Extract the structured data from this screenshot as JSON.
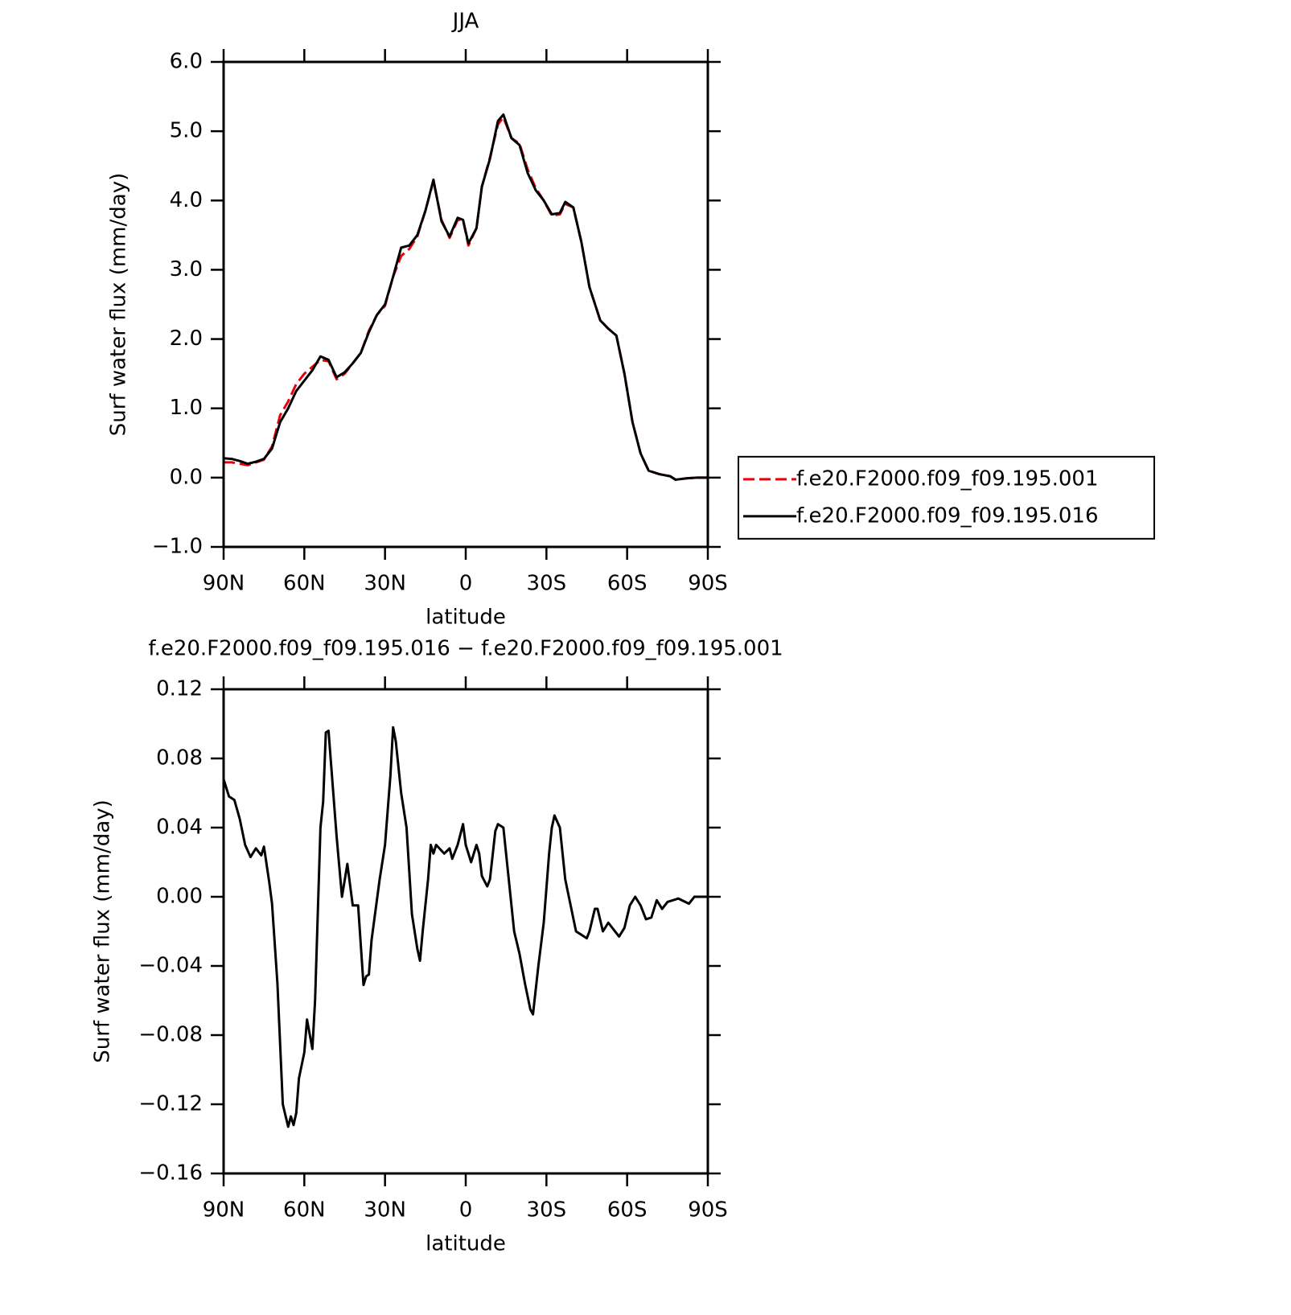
{
  "chart_data": [
    {
      "type": "line",
      "title": "JJA",
      "x_label": "latitude",
      "y_label": "Surf water flux (mm/day)",
      "x": [
        90,
        87,
        84,
        81,
        78,
        75,
        72,
        69,
        66,
        63,
        60,
        57,
        54,
        51,
        48,
        45,
        42,
        39,
        36,
        33,
        30,
        27,
        24,
        21,
        18,
        15,
        12,
        9,
        6,
        3,
        1,
        -1,
        -4,
        -6,
        -9,
        -12,
        -14,
        -17,
        -20,
        -23,
        -26,
        -29,
        -32,
        -35,
        -37,
        -40,
        -43,
        -46,
        -50,
        -53,
        -56,
        -59,
        -62,
        -65,
        -68,
        -72,
        -76,
        -78,
        -82,
        -86,
        -90
      ],
      "series": [
        {
          "name": "f.e20.F2000.f09_f09.195.001",
          "color": "#e8000b",
          "dash": true,
          "values": [
            0.22,
            0.22,
            0.2,
            0.18,
            0.22,
            0.26,
            0.45,
            0.9,
            1.1,
            1.35,
            1.5,
            1.6,
            1.7,
            1.68,
            1.42,
            1.5,
            1.65,
            1.8,
            2.12,
            2.35,
            2.48,
            2.9,
            3.2,
            3.3,
            3.48,
            3.85,
            4.28,
            3.72,
            3.46,
            3.72,
            3.72,
            3.35,
            3.6,
            4.2,
            4.62,
            5.1,
            5.2,
            4.9,
            4.82,
            4.45,
            4.18,
            4.0,
            3.78,
            3.8,
            3.95,
            3.9,
            3.4,
            2.75,
            2.27,
            2.15,
            2.05,
            1.5,
            0.8,
            0.35,
            0.1,
            0.05,
            0.02,
            -0.03,
            -0.01,
            0.0,
            0.0
          ]
        },
        {
          "name": "f.e20.F2000.f09_f09.195.016",
          "color": "#000000",
          "dash": false,
          "values": [
            0.28,
            0.27,
            0.24,
            0.2,
            0.23,
            0.27,
            0.42,
            0.8,
            1.0,
            1.25,
            1.4,
            1.55,
            1.75,
            1.7,
            1.45,
            1.52,
            1.65,
            1.8,
            2.1,
            2.35,
            2.5,
            2.9,
            3.32,
            3.35,
            3.5,
            3.85,
            4.3,
            3.7,
            3.48,
            3.75,
            3.72,
            3.38,
            3.6,
            4.2,
            4.6,
            5.15,
            5.24,
            4.9,
            4.8,
            4.4,
            4.15,
            4.0,
            3.8,
            3.82,
            3.98,
            3.9,
            3.4,
            2.75,
            2.27,
            2.15,
            2.05,
            1.5,
            0.8,
            0.35,
            0.1,
            0.05,
            0.02,
            -0.03,
            -0.01,
            0.0,
            0.0
          ]
        }
      ],
      "xlim": [
        90,
        -90
      ],
      "xticks": [
        {
          "value": 90,
          "label": "90N"
        },
        {
          "value": 60,
          "label": "60N"
        },
        {
          "value": 30,
          "label": "30N"
        },
        0,
        {
          "value": -30,
          "label": "30S"
        },
        {
          "value": -60,
          "label": "60S"
        },
        {
          "value": -90,
          "label": "90S"
        }
      ],
      "ylim": [
        -1,
        6
      ],
      "yticks": [
        {
          "value": -1,
          "label": "−1.0"
        },
        {
          "value": 0,
          "label": "0.0"
        },
        {
          "value": 1,
          "label": "1.0"
        },
        {
          "value": 2,
          "label": "2.0"
        },
        {
          "value": 3,
          "label": "3.0"
        },
        {
          "value": 4,
          "label": "4.0"
        },
        {
          "value": 5,
          "label": "5.0"
        },
        {
          "value": 6,
          "label": "6.0"
        }
      ],
      "legend": "right"
    },
    {
      "type": "line",
      "title": "f.e20.F2000.f09_f09.195.016 − f.e20.F2000.f09_f09.195.001",
      "x_label": "latitude",
      "y_label": "Surf water flux (mm/day)",
      "x": [
        90,
        88,
        86,
        84,
        82,
        80,
        78,
        76,
        75,
        73,
        72,
        70,
        68,
        66,
        65,
        64,
        63,
        62,
        60,
        59,
        57,
        56,
        54,
        53,
        52,
        51,
        48,
        46,
        44,
        42,
        40,
        38,
        37,
        36,
        35,
        32,
        30,
        28,
        27,
        26,
        24,
        22,
        20,
        18,
        17,
        16,
        14,
        13,
        12,
        11,
        8,
        6,
        5,
        3,
        1,
        0,
        -2,
        -4,
        -5,
        -6,
        -8,
        -9,
        -11,
        -12,
        -14,
        -16,
        -18,
        -20,
        -22,
        -24,
        -25,
        -27,
        -29,
        -31,
        -32,
        -33,
        -35,
        -37,
        -39,
        -41,
        -43,
        -45,
        -46,
        -48,
        -49,
        -51,
        -53,
        -55,
        -57,
        -59,
        -61,
        -63,
        -65,
        -67,
        -69,
        -71,
        -73,
        -75,
        -79,
        -83,
        -85,
        -88,
        -90
      ],
      "series": [
        {
          "color": "#000000",
          "values": [
            0.068,
            0.058,
            0.056,
            0.045,
            0.03,
            0.023,
            0.028,
            0.024,
            0.029,
            0.008,
            -0.004,
            -0.05,
            -0.12,
            -0.133,
            -0.127,
            -0.132,
            -0.125,
            -0.105,
            -0.09,
            -0.071,
            -0.088,
            -0.06,
            0.04,
            0.055,
            0.095,
            0.096,
            0.035,
            0.0,
            0.019,
            -0.005,
            -0.005,
            -0.051,
            -0.046,
            -0.045,
            -0.025,
            0.01,
            0.03,
            0.07,
            0.098,
            0.09,
            0.06,
            0.04,
            -0.01,
            -0.03,
            -0.037,
            -0.02,
            0.01,
            0.03,
            0.025,
            0.03,
            0.025,
            0.028,
            0.022,
            0.03,
            0.042,
            0.03,
            0.02,
            0.03,
            0.025,
            0.012,
            0.006,
            0.01,
            0.038,
            0.042,
            0.04,
            0.01,
            -0.02,
            -0.033,
            -0.05,
            -0.065,
            -0.068,
            -0.04,
            -0.015,
            0.025,
            0.04,
            0.047,
            0.04,
            0.01,
            -0.005,
            -0.02,
            -0.022,
            -0.024,
            -0.02,
            -0.007,
            -0.007,
            -0.02,
            -0.015,
            -0.019,
            -0.023,
            -0.018,
            -0.005,
            0.0,
            -0.005,
            -0.013,
            -0.012,
            -0.002,
            -0.007,
            -0.003,
            -0.001,
            -0.004,
            0.0,
            0.0,
            0.0
          ]
        }
      ],
      "xlim": [
        90,
        -90
      ],
      "xticks": [
        {
          "value": 90,
          "label": "90N"
        },
        {
          "value": 60,
          "label": "60N"
        },
        {
          "value": 30,
          "label": "30N"
        },
        0,
        {
          "value": -30,
          "label": "30S"
        },
        {
          "value": -60,
          "label": "60S"
        },
        {
          "value": -90,
          "label": "90S"
        }
      ],
      "ylim": [
        -0.16,
        0.12
      ],
      "yticks": [
        {
          "value": -0.16,
          "label": "−0.16"
        },
        {
          "value": -0.12,
          "label": "−0.12"
        },
        {
          "value": -0.08,
          "label": "−0.08"
        },
        {
          "value": -0.04,
          "label": "−0.04"
        },
        {
          "value": 0,
          "label": "0.00"
        },
        0.04,
        0.08,
        0.12
      ]
    }
  ]
}
